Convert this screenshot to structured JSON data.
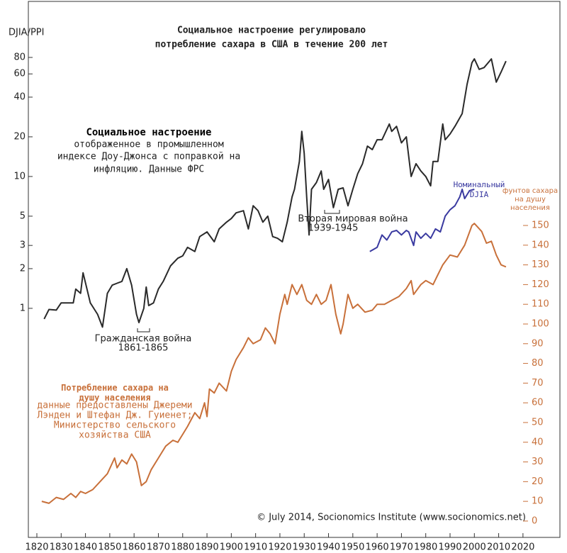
{
  "chart_data": {
    "type": "line",
    "title": [
      "Социальное настроение регулировало",
      "потребление сахара в США в течение 200 лет"
    ],
    "y_label": "DJIA/PPI",
    "y2_label": "фунтов сахара на душу населения",
    "y_scale": "log",
    "xlim": [
      1816.5,
      2035.2
    ],
    "xticks": [
      1820,
      1830,
      1840,
      1850,
      1860,
      1870,
      1880,
      1890,
      1900,
      1910,
      1920,
      1930,
      1940,
      1950,
      1960,
      1970,
      1980,
      1990,
      2000,
      2010,
      2020
    ],
    "ylim": [
      0.0183,
      212.8
    ],
    "yticks": [
      1,
      2,
      3,
      5,
      10,
      20,
      40,
      60,
      80
    ],
    "y2lim": [
      -8.3,
      263.7
    ],
    "y2ticks": [
      0,
      10,
      20,
      30,
      40,
      50,
      60,
      70,
      80,
      90,
      100,
      110,
      120,
      130,
      140,
      150
    ],
    "series": [
      {
        "name": "Социальное настроение",
        "color": "#2a2a2a",
        "axis": "y",
        "x": [
          1823,
          1825,
          1828,
          1830,
          1835,
          1836,
          1838,
          1839,
          1842,
          1845,
          1847,
          1849,
          1851,
          1853,
          1855,
          1857,
          1859,
          1861,
          1862,
          1864,
          1865,
          1866,
          1868,
          1870,
          1872,
          1875,
          1878,
          1880,
          1882,
          1885,
          1887,
          1890,
          1893,
          1895,
          1898,
          1900,
          1902,
          1905,
          1907,
          1909,
          1911,
          1913,
          1915,
          1917,
          1919,
          1921,
          1923,
          1925,
          1926,
          1928,
          1929,
          1930,
          1931,
          1932,
          1933,
          1935,
          1937,
          1938,
          1940,
          1942,
          1944,
          1946,
          1948,
          1950,
          1952,
          1954,
          1956,
          1958,
          1960,
          1962,
          1965,
          1966,
          1968,
          1970,
          1972,
          1974,
          1976,
          1978,
          1980,
          1982,
          1983,
          1985,
          1987,
          1988,
          1990,
          1992,
          1995,
          1997,
          1999,
          2000,
          2002,
          2004,
          2007,
          2009,
          2011,
          2013
        ],
        "values": [
          0.83,
          0.98,
          0.97,
          1.1,
          1.1,
          1.4,
          1.3,
          1.86,
          1.1,
          0.9,
          0.72,
          1.3,
          1.5,
          1.55,
          1.6,
          2.0,
          1.5,
          0.9,
          0.78,
          1.0,
          1.45,
          1.05,
          1.1,
          1.4,
          1.6,
          2.1,
          2.4,
          2.5,
          2.9,
          2.7,
          3.5,
          3.8,
          3.2,
          4.0,
          4.5,
          4.8,
          5.3,
          5.5,
          4.0,
          6.0,
          5.5,
          4.5,
          5.0,
          3.5,
          3.4,
          3.2,
          4.5,
          7.0,
          8.0,
          13.0,
          22.0,
          15.0,
          7.0,
          3.6,
          8.0,
          9.0,
          11.0,
          8.0,
          9.5,
          5.8,
          8.0,
          8.2,
          6.0,
          8.0,
          10.5,
          12.5,
          17.0,
          16.0,
          19.0,
          19.0,
          25.0,
          22.0,
          24.0,
          18.0,
          20.0,
          10.0,
          12.5,
          11.0,
          10.0,
          8.5,
          13.0,
          13.0,
          25.0,
          19.0,
          21.0,
          24.0,
          30.0,
          50.0,
          73.0,
          78.0,
          65.0,
          67.0,
          78.0,
          52.0,
          62.0,
          75.0
        ]
      },
      {
        "name": "Потребление сахара на душу населения",
        "color": "#c8703a",
        "axis": "y2",
        "x": [
          1822,
          1825,
          1828,
          1831,
          1834,
          1836,
          1838,
          1840,
          1843,
          1846,
          1849,
          1852,
          1853,
          1855,
          1857,
          1859,
          1861,
          1863,
          1865,
          1867,
          1870,
          1873,
          1876,
          1878,
          1880,
          1882,
          1885,
          1887,
          1889,
          1890,
          1891,
          1893,
          1895,
          1898,
          1900,
          1902,
          1905,
          1907,
          1909,
          1912,
          1914,
          1916,
          1918,
          1920,
          1922,
          1923,
          1925,
          1927,
          1929,
          1931,
          1933,
          1935,
          1937,
          1939,
          1941,
          1943,
          1945,
          1946,
          1948,
          1950,
          1952,
          1955,
          1958,
          1960,
          1963,
          1966,
          1969,
          1972,
          1974,
          1975,
          1978,
          1980,
          1983,
          1985,
          1987,
          1990,
          1993,
          1996,
          1999,
          2000,
          2003,
          2005,
          2007,
          2009,
          2011,
          2013
        ],
        "values": [
          10,
          9,
          12,
          11,
          14,
          12,
          15,
          14,
          16,
          20,
          24,
          32,
          27,
          31,
          29,
          34,
          30,
          18,
          20,
          26,
          32,
          38,
          41,
          40,
          44,
          48,
          55,
          52,
          60,
          53,
          67,
          65,
          70,
          66,
          76,
          82,
          88,
          93,
          90,
          92,
          98,
          95,
          90,
          105,
          115,
          110,
          120,
          115,
          120,
          112,
          110,
          115,
          110,
          112,
          120,
          105,
          95,
          100,
          115,
          108,
          110,
          106,
          107,
          110,
          110,
          112,
          114,
          118,
          122,
          115,
          120,
          122,
          120,
          125,
          130,
          135,
          134,
          140,
          150,
          151,
          147,
          141,
          142,
          135,
          130,
          129
        ]
      },
      {
        "name": "Номинальный DJIA",
        "color": "#3a3aa0",
        "axis": "y",
        "x": [
          1957,
          1960,
          1962,
          1964,
          1966,
          1968,
          1970,
          1972,
          1973,
          1975,
          1976,
          1978,
          1980,
          1982,
          1984,
          1986,
          1988,
          1990,
          1992,
          1994,
          1995,
          1996,
          1998,
          2000
        ],
        "values": [
          2.7,
          2.9,
          3.6,
          3.3,
          3.8,
          3.9,
          3.6,
          3.9,
          3.8,
          3.0,
          3.8,
          3.4,
          3.7,
          3.4,
          4.0,
          3.8,
          5.0,
          5.6,
          6.0,
          7.0,
          8.0,
          6.8,
          7.8,
          8.0
        ]
      }
    ],
    "annotations": {
      "mood_note": [
        "отображенное в промышленном",
        "индексе Доу-Джонса с поправкой на",
        "инфляцию. Данные ФРС"
      ],
      "sugar_note": [
        "данные предоставлены Джереми",
        "Лэнден и Штефан Дж. Гуиенет;",
        "Министерство сельского",
        "хозяйства США"
      ],
      "civil_war": {
        "label": "Гражданская война",
        "years": "1861-1865"
      },
      "ww2": {
        "label": "Вторая мировая война",
        "years": "1939-1945"
      },
      "credit": "© July 2014, Socionomics Institute (www.socionomics.net)"
    }
  }
}
